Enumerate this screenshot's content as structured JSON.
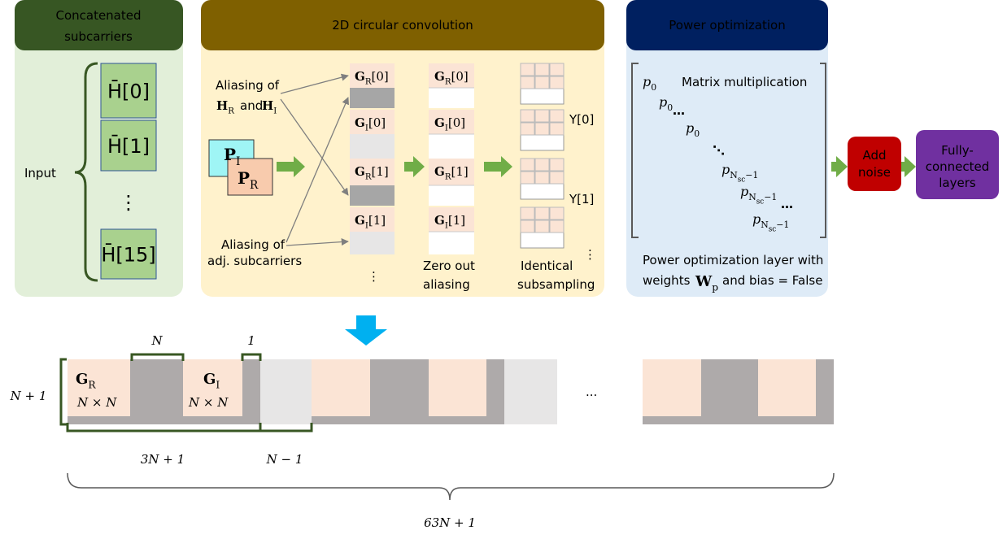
{
  "subcarriers": {
    "title": [
      "Concatenated",
      "subcarriers"
    ],
    "input": "Input",
    "items": [
      {
        "base": "H̄",
        "index": "[0]"
      },
      {
        "base": "H̄",
        "index": "[1]"
      },
      {
        "base": "⋮"
      },
      {
        "base": "H̄",
        "index": "[15]"
      }
    ]
  },
  "convolution": {
    "title": "2D circular convolution",
    "aliasing_top": {
      "line1": "Aliasing of",
      "h1": {
        "base": "H",
        "sub": "R"
      },
      "and": "and",
      "h2": {
        "base": "H",
        "sub": "I"
      }
    },
    "aliasing_bottom": [
      "Aliasing of",
      "adj. subcarriers"
    ],
    "kernels": [
      {
        "base": "P",
        "sub": "I"
      },
      {
        "base": "P",
        "sub": "R"
      }
    ],
    "column1": [
      {
        "base": "G",
        "sub": "R",
        "index": "[0]"
      },
      {
        "base": "G",
        "sub": "I",
        "index": "[0]"
      },
      {
        "base": "G",
        "sub": "R",
        "index": "[1]"
      },
      {
        "base": "G",
        "sub": "I",
        "index": "[1]"
      }
    ],
    "column1_more": "⋮",
    "column2": [
      {
        "base": "G",
        "sub": "R",
        "index": "[0]"
      },
      {
        "base": "G",
        "sub": "I",
        "index": "[0]"
      },
      {
        "base": "G",
        "sub": "R",
        "index": "[1]"
      },
      {
        "base": "G",
        "sub": "I",
        "index": "[1]"
      }
    ],
    "column2_caption": [
      "Zero out",
      "aliasing"
    ],
    "outputs": [
      "Y[0]",
      "Y[1]",
      "⋮"
    ],
    "column3_caption": [
      "Identical",
      "subsampling"
    ]
  },
  "power": {
    "title": "Power optimization",
    "note": "Matrix multiplication",
    "entries": [
      {
        "base": "p",
        "sub": "0"
      },
      {
        "base": "p",
        "sub": "0"
      },
      {
        "base": "p",
        "sub": "0"
      },
      {
        "base": "p",
        "sub": "N",
        "subsub": "sc",
        "tail": "−1"
      },
      {
        "base": "p",
        "sub": "N",
        "subsub": "sc",
        "tail": "−1"
      },
      {
        "base": "p",
        "sub": "N",
        "subsub": "sc",
        "tail": "−1"
      }
    ],
    "dots": [
      "…",
      "⋱",
      "…"
    ],
    "caption": {
      "line1": "Power optimization layer with",
      "weights": "weights",
      "w": {
        "base": "W",
        "sub": "p"
      },
      "rest": "and bias = False"
    }
  },
  "noise": [
    "Add",
    "noise"
  ],
  "fc": [
    "Fully-",
    "connected",
    "layers"
  ],
  "layout": {
    "n": "N",
    "one": "1",
    "rows": "N + 1",
    "gr": {
      "base": "G",
      "sub": "R"
    },
    "gi": {
      "base": "G",
      "sub": "I"
    },
    "size_r": "N × N",
    "size_i": "N × N",
    "ellipsis": "...",
    "span": "3N + 1",
    "gap": "N − 1",
    "total": "63N + 1"
  }
}
